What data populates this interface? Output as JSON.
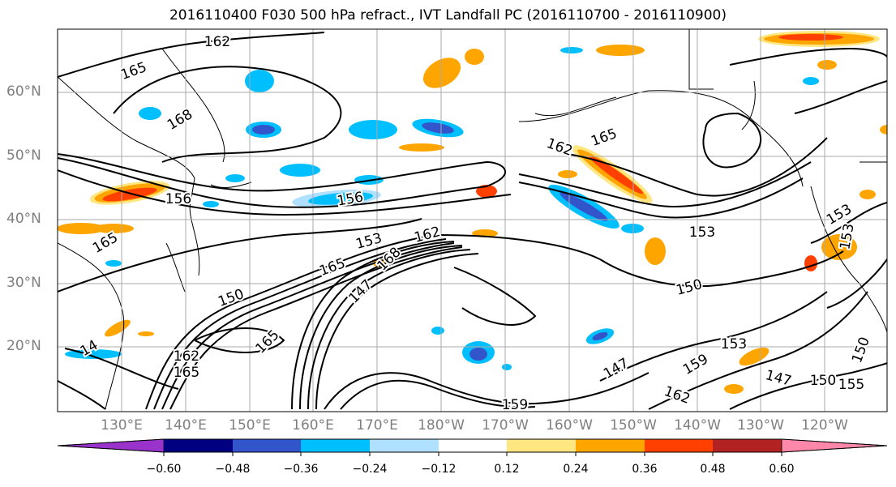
{
  "title": "2016110400 F030 500 hPa refract., IVT Landfall PC (2016110700 - 2016110900)",
  "lat_labels": [
    "60°N",
    "50°N",
    "40°N",
    "30°N",
    "20°N"
  ],
  "lon_labels": [
    "130°E",
    "140°E",
    "150°E",
    "160°E",
    "170°E",
    "180°W",
    "170°W",
    "160°W",
    "150°W",
    "140°W",
    "130°W",
    "120°W"
  ],
  "contour_labels": [
    "162",
    "165",
    "168",
    "165",
    "165",
    "162",
    "156",
    "156",
    "153",
    "162",
    "153",
    "153",
    "153",
    "165",
    "168",
    "147",
    "150",
    "150",
    "165",
    "162",
    "165",
    "147",
    "159",
    "162",
    "147",
    "150",
    "155",
    "150",
    "14",
    "159",
    "153"
  ],
  "colorbar": {
    "colors": [
      "#9933cc",
      "#000080",
      "#3355cc",
      "#00bfff",
      "#b0e0ff",
      "#ffffff",
      "#ffe680",
      "#ffa500",
      "#ff4000",
      "#b22222",
      "#ff88aa"
    ],
    "ticks": [
      "−0.60",
      "−0.48",
      "−0.36",
      "−0.24",
      "−0.12",
      "0.12",
      "0.24",
      "0.36",
      "0.48",
      "0.60"
    ]
  }
}
